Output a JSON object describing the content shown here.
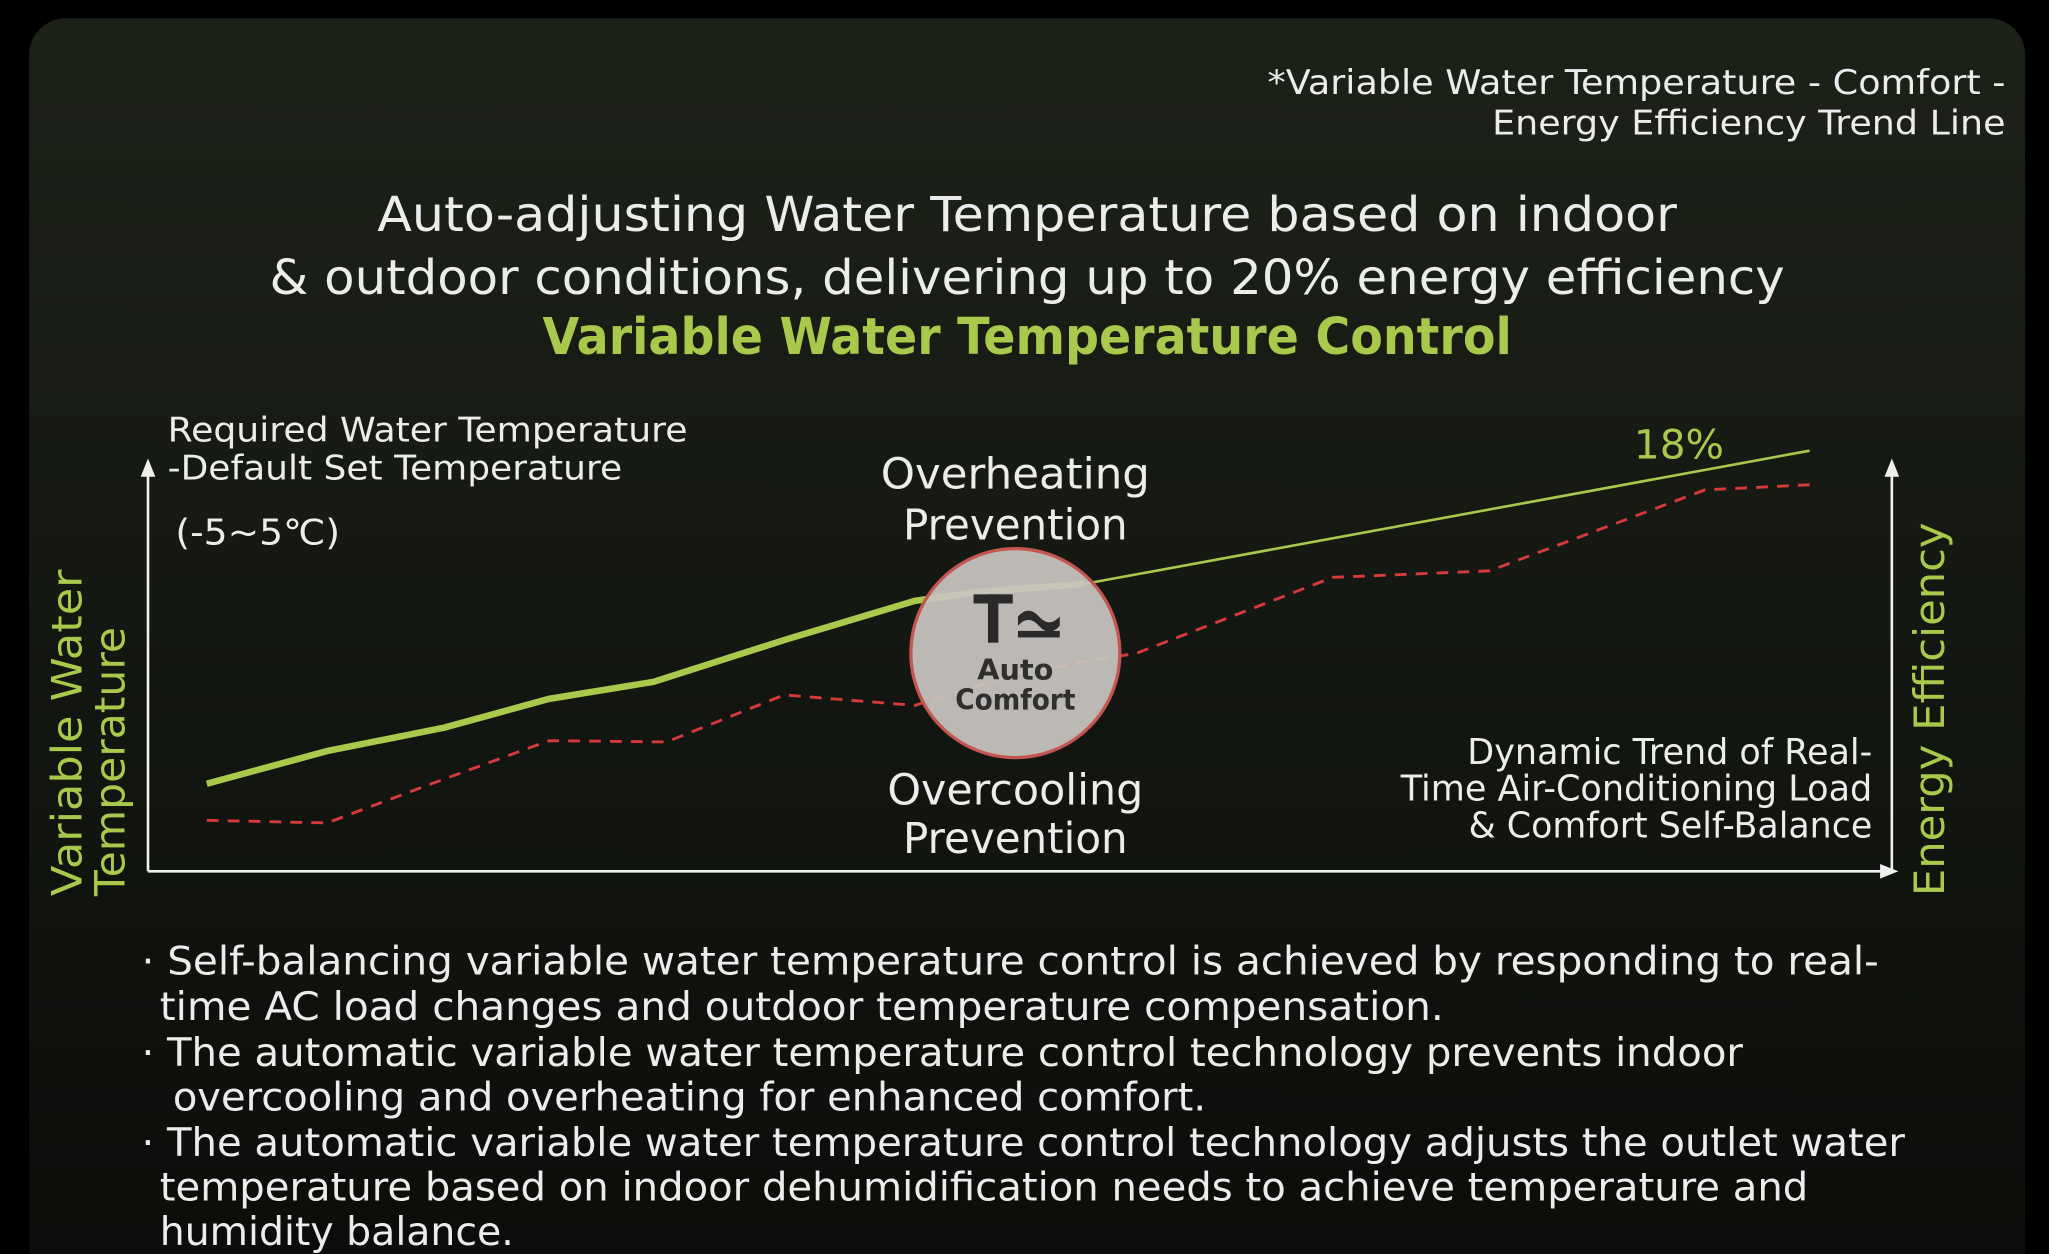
{
  "note": [
    "*Variable Water Temperature - Comfort -",
    "Energy Efficiency Trend Line"
  ],
  "headline": [
    "Auto-adjusting Water Temperature based on indoor",
    "& outdoor conditions, delivering up to 20% energy efficiency"
  ],
  "subtitle": "Variable Water Temperature Control",
  "left_axis_note": [
    "Required Water Temperature",
    "-Default Set Temperature",
    "(-5~5℃)"
  ],
  "y_axis_label": [
    "Variable Water",
    "Temperature"
  ],
  "right_axis_label": "Energy Efficiency",
  "line_label": "18%",
  "overheating": [
    "Overheating",
    "Prevention"
  ],
  "overcooling": [
    "Overcooling",
    "Prevention"
  ],
  "center_badge": [
    "Auto",
    "Comfort"
  ],
  "trend_note": [
    "Dynamic Trend of Real-",
    "Time Air-Conditioning Load",
    "& Comfort Self-Balance"
  ],
  "bullets": [
    [
      "· Self-balancing variable water temperature control is achieved by responding to real-",
      "time AC load changes and outdoor temperature compensation."
    ],
    [
      "· The automatic variable water temperature control technology prevents indoor",
      "overcooling and overheating for enhanced comfort."
    ],
    [
      "· The automatic variable water temperature control technology adjusts the outlet water",
      "temperature based on indoor dehumidification needs to achieve temperature and",
      "humidity balance."
    ]
  ]
}
